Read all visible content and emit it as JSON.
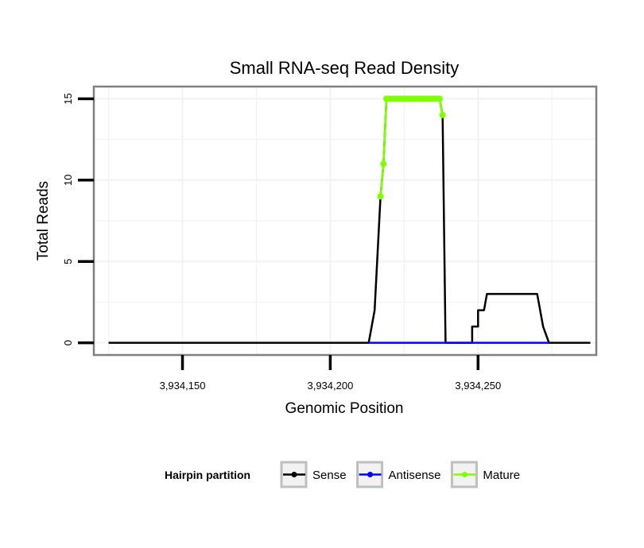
{
  "chart_data": {
    "type": "line",
    "title": "Small RNA-seq Read Density",
    "xlabel": "Genomic Position",
    "ylabel": "Total Reads",
    "xlim": [
      3934120,
      3934290
    ],
    "ylim": [
      -0.75,
      15.75
    ],
    "x_ticks": [
      3934150,
      3934200,
      3934250
    ],
    "x_tick_labels": [
      "3,934,150",
      "3,934,200",
      "3,934,250"
    ],
    "y_ticks": [
      0,
      5,
      10,
      15
    ],
    "y_tick_labels": [
      "0",
      "5",
      "10",
      "15"
    ],
    "grid": true,
    "legend": {
      "title": "Hairpin partition",
      "position": "bottom",
      "entries": [
        {
          "label": "Sense",
          "color": "#000000"
        },
        {
          "label": "Antisense",
          "color": "#0000ff"
        },
        {
          "label": "Mature",
          "color": "#7fff00"
        }
      ]
    },
    "series": [
      {
        "name": "Sense",
        "color": "#000000",
        "style": "line",
        "x": [
          3934125,
          3934213,
          3934215,
          3934217,
          3934218,
          3934219,
          3934237,
          3934238,
          3934239,
          3934248,
          3934248,
          3934250,
          3934250,
          3934252,
          3934253,
          3934255,
          3934270,
          3934272,
          3934274,
          3934288
        ],
        "y": [
          0,
          0,
          2,
          9,
          11,
          15,
          15,
          14,
          0,
          0,
          1,
          1,
          2,
          2,
          3,
          3,
          3,
          1,
          0,
          0
        ]
      },
      {
        "name": "Antisense",
        "color": "#0000ff",
        "style": "line",
        "x": [
          3934213,
          3934274
        ],
        "y": [
          0,
          0
        ]
      },
      {
        "name": "Mature",
        "color": "#7fff00",
        "style": "line+points",
        "x": [
          3934217,
          3934218,
          3934219,
          3934220,
          3934221,
          3934222,
          3934223,
          3934224,
          3934225,
          3934226,
          3934227,
          3934228,
          3934229,
          3934230,
          3934231,
          3934232,
          3934233,
          3934234,
          3934235,
          3934236,
          3934237,
          3934238
        ],
        "y": [
          9,
          11,
          15,
          15,
          15,
          15,
          15,
          15,
          15,
          15,
          15,
          15,
          15,
          15,
          15,
          15,
          15,
          15,
          15,
          15,
          15,
          14
        ]
      }
    ]
  }
}
